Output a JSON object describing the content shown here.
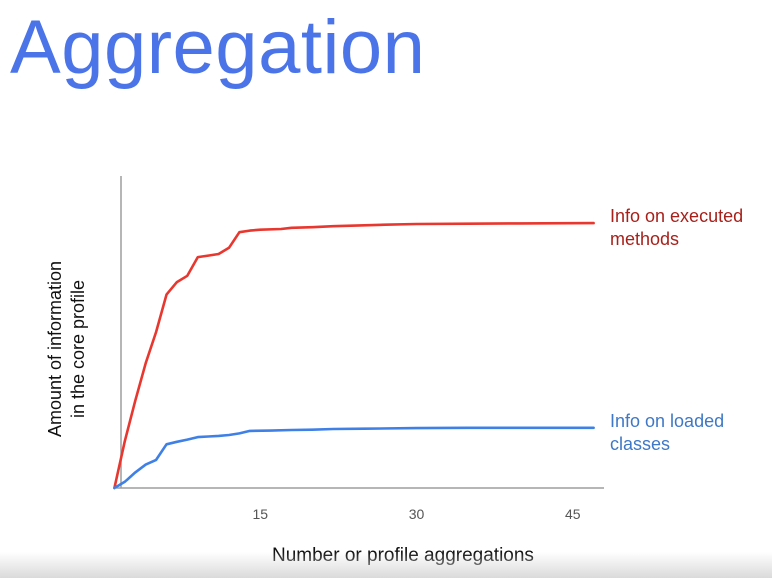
{
  "slide": {
    "title": "Aggregation"
  },
  "colors": {
    "title": "#4a74e8",
    "executed": "#e8372e",
    "loaded": "#3f80e6",
    "axis": "#9e9e9e"
  },
  "chart_data": {
    "type": "line",
    "title": "",
    "xlabel": "Number or profile aggregations",
    "ylabel_lines": [
      "Amount of information",
      "in the core profile"
    ],
    "xticks": [
      15,
      30,
      45
    ],
    "xlim": [
      0,
      48
    ],
    "ylim": [
      0,
      100
    ],
    "y_tick_labels": false,
    "grid": false,
    "legend_placement": "right, labels beside line ends",
    "series": [
      {
        "name": "Info on executed methods",
        "legend_lines": [
          "Info on executed",
          "methods"
        ],
        "color": "#e8372e",
        "x": [
          1,
          2,
          3,
          4,
          5,
          6,
          7,
          8,
          9,
          10,
          11,
          12,
          13,
          14,
          15,
          17,
          18,
          20,
          22,
          25,
          27,
          30,
          35,
          40,
          47
        ],
        "y": [
          0,
          15,
          28,
          40,
          50,
          62,
          66,
          68,
          74,
          74.5,
          75,
          77,
          82,
          82.5,
          82.8,
          83,
          83.4,
          83.6,
          83.9,
          84.2,
          84.4,
          84.6,
          84.7,
          84.8,
          84.9
        ]
      },
      {
        "name": "Info on loaded classes",
        "legend_lines": [
          "Info on loaded",
          "classes"
        ],
        "color": "#3f80e6",
        "x": [
          1,
          2,
          3,
          4,
          5,
          6,
          7,
          8,
          9,
          10,
          11,
          12,
          13,
          14,
          16,
          18,
          20,
          22,
          25,
          30,
          35,
          40,
          47
        ],
        "y": [
          0,
          2,
          5,
          7.5,
          9,
          14,
          14.8,
          15.5,
          16.3,
          16.5,
          16.7,
          17,
          17.5,
          18.3,
          18.4,
          18.6,
          18.7,
          18.9,
          19,
          19.2,
          19.3,
          19.3,
          19.3
        ]
      }
    ]
  }
}
